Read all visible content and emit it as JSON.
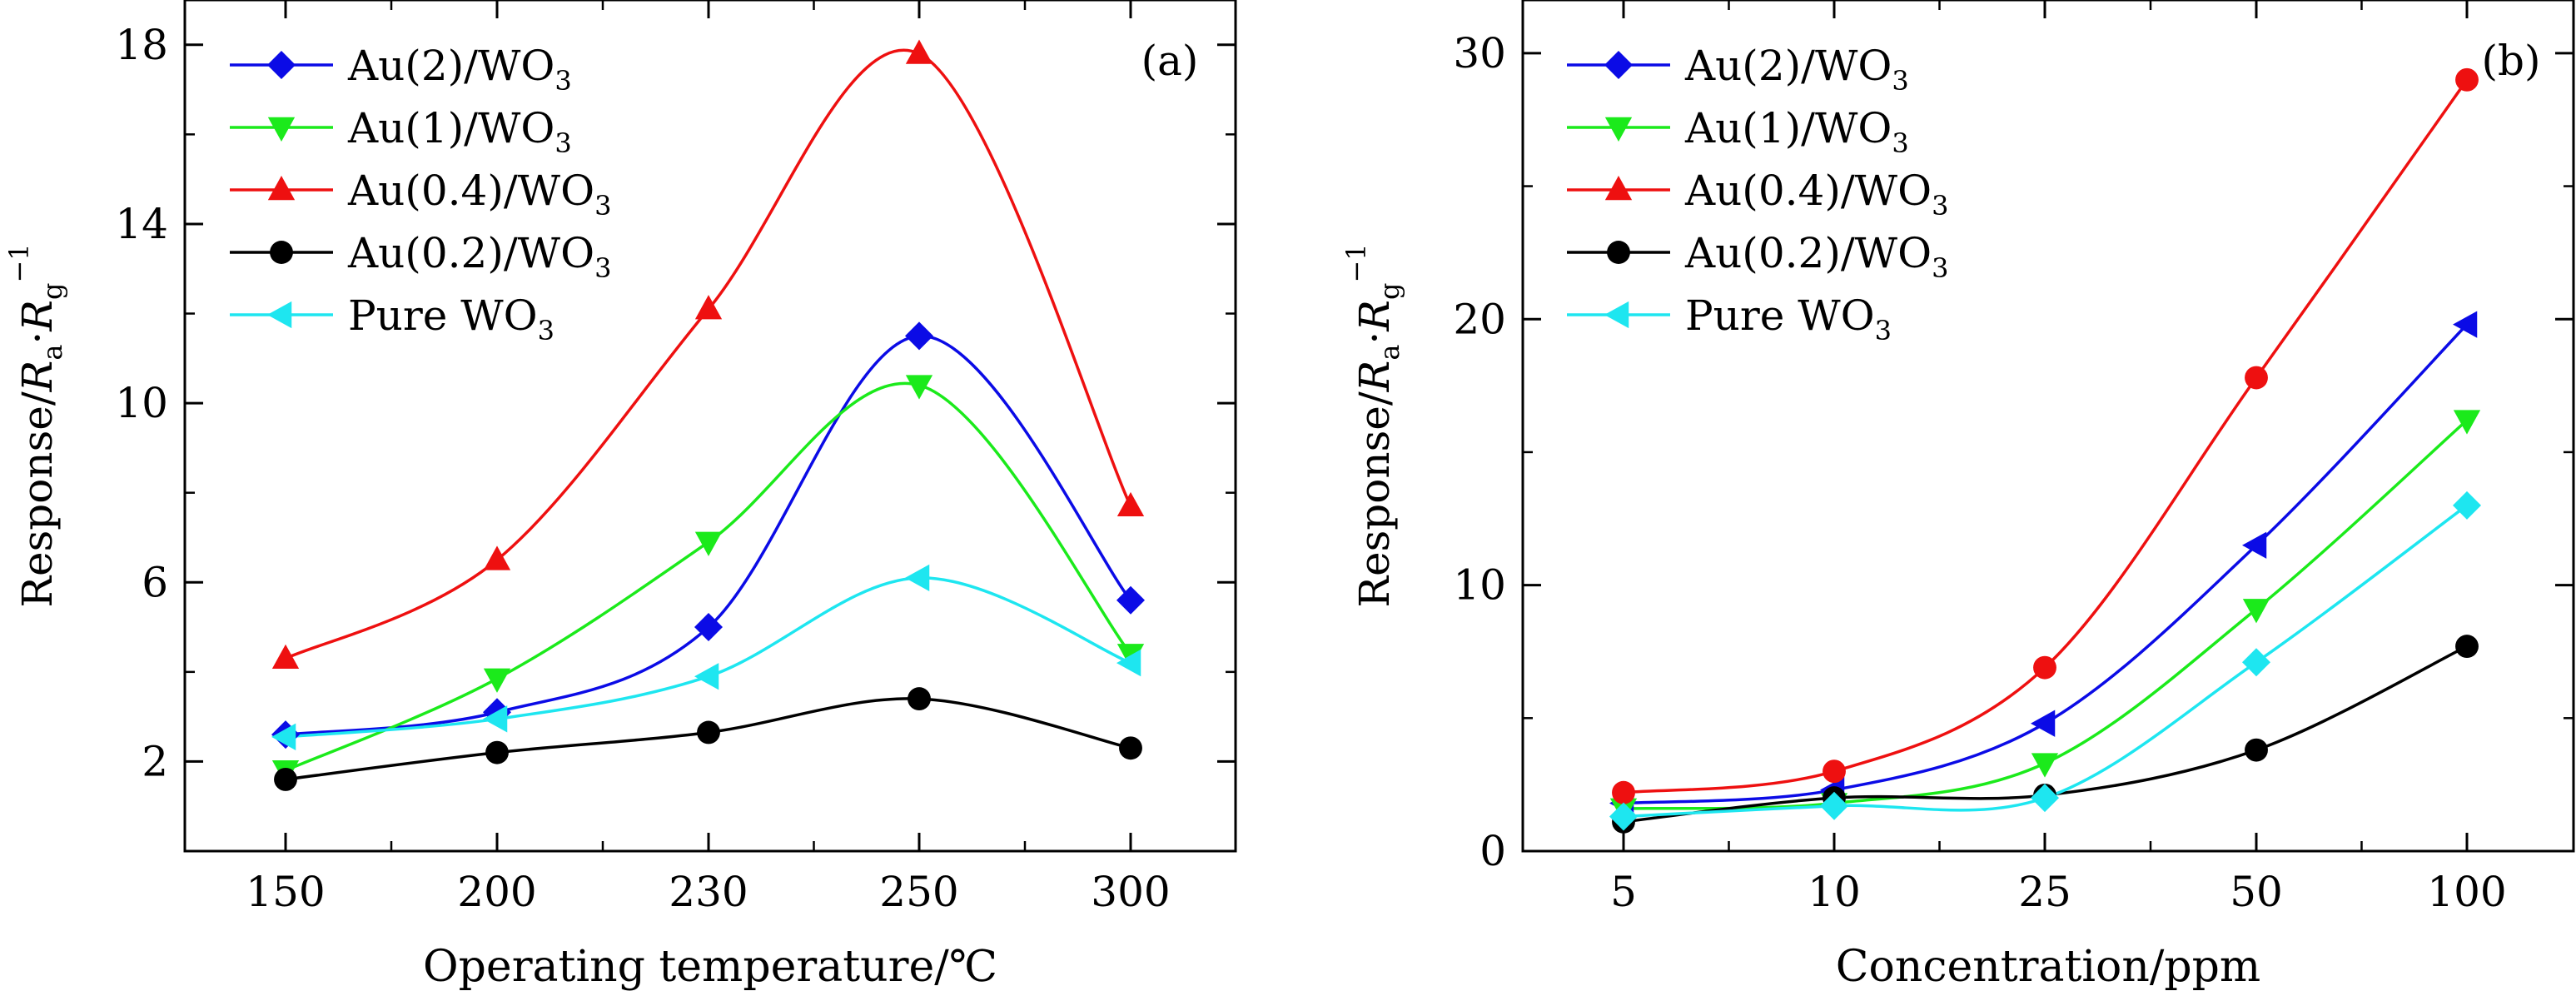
{
  "chart_data": [
    {
      "type": "line",
      "panel_label": "(a)",
      "xlabel": "Operating temperature/℃",
      "ylabel": {
        "prefix": "Response/",
        "ra": "R",
        "ra_sub": "a",
        "dot": "·",
        "rg": "R",
        "rg_sub": "g",
        "sup": "−1"
      },
      "categories": [
        "150",
        "200",
        "230",
        "250",
        "300"
      ],
      "ylim": [
        0,
        19
      ],
      "yticks": [
        2,
        6,
        10,
        14,
        18
      ],
      "series": [
        {
          "name": "Au(2)/WO",
          "name_sub": "3",
          "color": "#0b0be6",
          "marker": "diamond",
          "values": [
            2.6,
            3.1,
            5.0,
            11.5,
            5.6
          ]
        },
        {
          "name": "Au(1)/WO",
          "name_sub": "3",
          "color": "#1bea1b",
          "marker": "triangle-down",
          "values": [
            1.8,
            3.85,
            6.9,
            10.4,
            4.4
          ]
        },
        {
          "name": "Au(0.4)/WO",
          "name_sub": "3",
          "color": "#ee1010",
          "marker": "triangle-up",
          "values": [
            4.3,
            6.5,
            12.1,
            17.8,
            7.7
          ]
        },
        {
          "name": "Au(0.2)/WO",
          "name_sub": "3",
          "color": "#000000",
          "marker": "circle",
          "values": [
            1.6,
            2.2,
            2.65,
            3.4,
            2.3
          ]
        },
        {
          "name": "Pure WO",
          "name_sub": "3",
          "color": "#1ee6f0",
          "marker": "triangle-left",
          "values": [
            2.55,
            2.95,
            3.9,
            6.1,
            4.2
          ]
        }
      ]
    },
    {
      "type": "line",
      "panel_label": "(b)",
      "xlabel": "Concentration/ppm",
      "ylabel": {
        "prefix": "Response/",
        "ra": "R",
        "ra_sub": "a",
        "dot": "·",
        "rg": "R",
        "rg_sub": "g",
        "sup": "−1"
      },
      "categories": [
        "5",
        "10",
        "25",
        "50",
        "100"
      ],
      "ylim": [
        0,
        32
      ],
      "yticks": [
        0,
        10,
        20,
        30
      ],
      "series": [
        {
          "name": "Au(2)/WO",
          "name_sub": "3",
          "color": "#0b0be6",
          "marker": "triangle-left",
          "values": [
            1.8,
            2.3,
            4.8,
            11.5,
            19.8
          ]
        },
        {
          "name": "Au(1)/WO",
          "name_sub": "3",
          "color": "#1bea1b",
          "marker": "triangle-down",
          "values": [
            1.6,
            1.8,
            3.3,
            9.1,
            16.2
          ]
        },
        {
          "name": "Au(0.4)/WO",
          "name_sub": "3",
          "color": "#ee1010",
          "marker": "circle",
          "values": [
            2.2,
            3.0,
            6.9,
            17.8,
            29.0
          ]
        },
        {
          "name": "Au(0.2)/WO",
          "name_sub": "3",
          "color": "#000000",
          "marker": "circle",
          "values": [
            1.1,
            2.0,
            2.1,
            3.8,
            7.7
          ]
        },
        {
          "name": "Pure WO",
          "name_sub": "3",
          "color": "#1ee6f0",
          "marker": "diamond",
          "values": [
            1.3,
            1.7,
            2.0,
            7.1,
            13.0
          ]
        }
      ],
      "legend_markers": [
        "diamond",
        "triangle-down",
        "triangle-up",
        "circle",
        "triangle-left"
      ]
    }
  ]
}
